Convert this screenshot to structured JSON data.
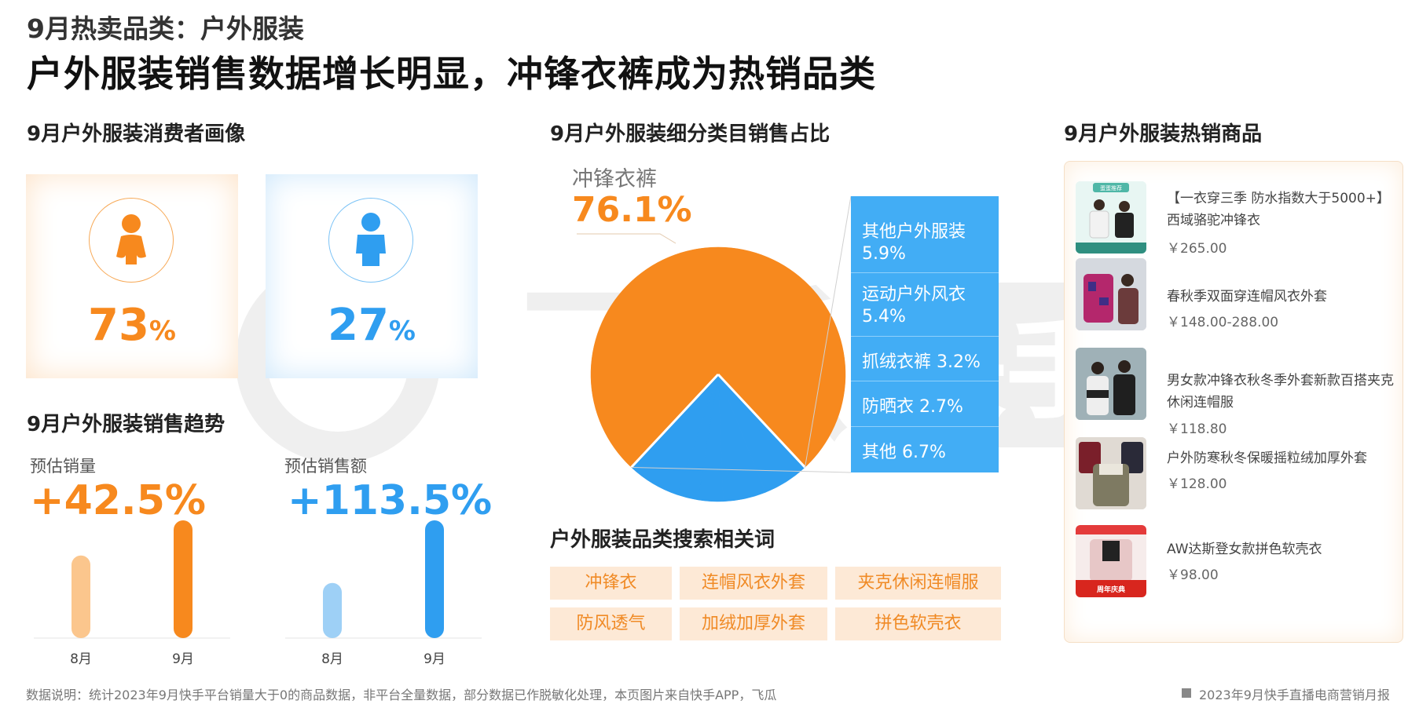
{
  "header": {
    "kicker": "9月热卖品类：户外服装",
    "title": "户外服装销售数据增长明显，冲锋衣裤成为热销品类"
  },
  "watermark": {
    "text_cn": "飞瓜",
    "text_2": "快手版"
  },
  "profile": {
    "title": "9月户外服装消费者画像",
    "female": {
      "value": "73",
      "unit": "%",
      "color": "#f7891e",
      "icon": "female-icon"
    },
    "male": {
      "value": "27",
      "unit": "%",
      "color": "#2f9ef0",
      "icon": "male-icon"
    }
  },
  "trend": {
    "title": "9月户外服装销售趋势",
    "volume": {
      "label": "预估销量",
      "growth": "+42.5%",
      "color": "#f7891e"
    },
    "amount": {
      "label": "预估销售额",
      "growth": "+113.5%",
      "color": "#2f9ef0"
    }
  },
  "share": {
    "title": "9月户外服装细分类目销售占比",
    "main_label": "冲锋衣裤",
    "main_value": "76.1%",
    "breakdown": [
      {
        "name": "其他户外服装",
        "value": "5.9%"
      },
      {
        "name": "运动户外风衣",
        "value": "5.4%"
      },
      {
        "name": "抓绒衣裤",
        "value": "3.2%"
      },
      {
        "name": "防晒衣",
        "value": "2.7%"
      },
      {
        "name": "其他",
        "value": "6.7%"
      }
    ]
  },
  "chart_data": [
    {
      "type": "bar",
      "categories": [
        "8月",
        "9月"
      ],
      "series": [
        {
          "values": [
            1.0,
            1.425
          ]
        }
      ],
      "title": "预估销量",
      "annotation": "+42.5%",
      "color": "#f7891e"
    },
    {
      "type": "bar",
      "categories": [
        "8月",
        "9月"
      ],
      "series": [
        {
          "values": [
            1.0,
            2.135
          ]
        }
      ],
      "title": "预估销售额",
      "annotation": "+113.5%",
      "color": "#2f9ef0"
    },
    {
      "type": "pie",
      "categories": [
        "冲锋衣裤",
        "其他户外服装",
        "运动户外风衣",
        "抓绒衣裤",
        "防晒衣",
        "其他"
      ],
      "values": [
        76.1,
        5.9,
        5.4,
        3.2,
        2.7,
        6.7
      ],
      "colors": [
        "#f7891e",
        "#2f9ef0",
        "#2f9ef0",
        "#2f9ef0",
        "#2f9ef0",
        "#2f9ef0"
      ]
    }
  ],
  "search": {
    "title": "户外服装品类搜索相关词",
    "tags": [
      "冲锋衣",
      "连帽风衣外套",
      "夹克休闲连帽服",
      "防风透气",
      "加绒加厚外套",
      "拼色软壳衣"
    ]
  },
  "hot": {
    "title": "9月户外服装热销商品",
    "items": [
      {
        "name": "【一衣穿三季 防水指数大于5000+】西域骆驼冲锋衣",
        "price": "￥265.00",
        "badge": "蛋蛋推荐"
      },
      {
        "name": "春秋季双面穿连帽风衣外套",
        "price": "￥148.00-288.00"
      },
      {
        "name": "男女款冲锋衣秋冬季外套新款百搭夹克休闲连帽服",
        "price": "￥118.80"
      },
      {
        "name": "户外防寒秋冬保暖摇粒绒加厚外套",
        "price": "￥128.00"
      },
      {
        "name": "AW达斯登女款拼色软壳衣",
        "price": "￥98.00",
        "badge": "周年庆典"
      }
    ]
  },
  "footer": {
    "note": "数据说明：统计2023年9月快手平台销量大于0的商品数据，非平台全量数据，部分数据已作脱敏化处理，本页图片来自快手APP，飞瓜",
    "report": "2023年9月快手直播电商营销月报"
  }
}
